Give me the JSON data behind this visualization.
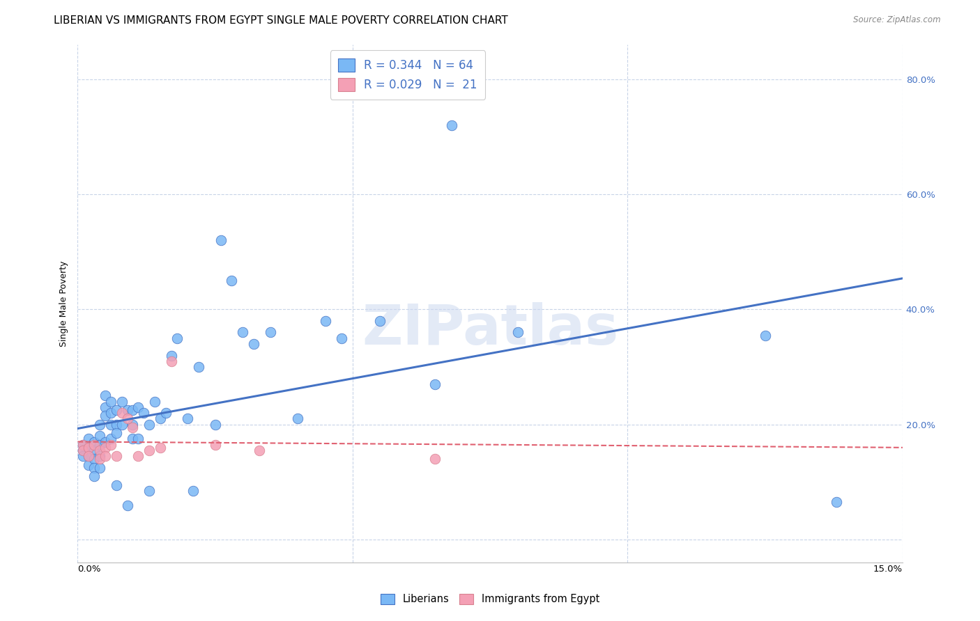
{
  "title": "LIBERIAN VS IMMIGRANTS FROM EGYPT SINGLE MALE POVERTY CORRELATION CHART",
  "source": "Source: ZipAtlas.com",
  "ylabel": "Single Male Poverty",
  "yticks": [
    0.0,
    0.2,
    0.4,
    0.6,
    0.8
  ],
  "ytick_labels": [
    "",
    "20.0%",
    "40.0%",
    "60.0%",
    "80.0%"
  ],
  "xlim": [
    0.0,
    0.15
  ],
  "ylim": [
    -0.04,
    0.86
  ],
  "liberian_color": "#7ab8f5",
  "egypt_color": "#f4a0b5",
  "liberian_line_color": "#4472c4",
  "egypt_line_color": "#e06070",
  "grid_color": "#c8d4e8",
  "background_color": "#ffffff",
  "right_tick_color": "#4472c4",
  "title_fontsize": 11,
  "axis_label_fontsize": 9,
  "tick_fontsize": 9.5,
  "watermark": "ZIPatlas",
  "legend_label1": "R = 0.344   N = 64",
  "legend_label2": "R = 0.029   N =  21",
  "bottom_label1": "Liberians",
  "bottom_label2": "Immigrants from Egypt",
  "liberian_x": [
    0.001,
    0.001,
    0.001,
    0.002,
    0.002,
    0.002,
    0.002,
    0.003,
    0.003,
    0.003,
    0.003,
    0.003,
    0.004,
    0.004,
    0.004,
    0.004,
    0.004,
    0.005,
    0.005,
    0.005,
    0.005,
    0.006,
    0.006,
    0.006,
    0.006,
    0.007,
    0.007,
    0.007,
    0.007,
    0.008,
    0.008,
    0.009,
    0.009,
    0.01,
    0.01,
    0.01,
    0.011,
    0.011,
    0.012,
    0.013,
    0.013,
    0.014,
    0.015,
    0.016,
    0.017,
    0.018,
    0.02,
    0.021,
    0.022,
    0.025,
    0.026,
    0.028,
    0.03,
    0.032,
    0.035,
    0.04,
    0.045,
    0.048,
    0.055,
    0.065,
    0.068,
    0.08,
    0.125,
    0.138
  ],
  "liberian_y": [
    0.165,
    0.155,
    0.145,
    0.175,
    0.16,
    0.145,
    0.13,
    0.17,
    0.155,
    0.14,
    0.125,
    0.11,
    0.2,
    0.18,
    0.165,
    0.145,
    0.125,
    0.25,
    0.23,
    0.215,
    0.17,
    0.24,
    0.22,
    0.2,
    0.175,
    0.225,
    0.2,
    0.185,
    0.095,
    0.24,
    0.2,
    0.225,
    0.06,
    0.2,
    0.225,
    0.175,
    0.23,
    0.175,
    0.22,
    0.085,
    0.2,
    0.24,
    0.21,
    0.22,
    0.32,
    0.35,
    0.21,
    0.085,
    0.3,
    0.2,
    0.52,
    0.45,
    0.36,
    0.34,
    0.36,
    0.21,
    0.38,
    0.35,
    0.38,
    0.27,
    0.72,
    0.36,
    0.355,
    0.065
  ],
  "egypt_x": [
    0.001,
    0.001,
    0.002,
    0.002,
    0.003,
    0.004,
    0.004,
    0.005,
    0.005,
    0.006,
    0.007,
    0.008,
    0.009,
    0.01,
    0.011,
    0.013,
    0.015,
    0.017,
    0.025,
    0.033,
    0.065
  ],
  "egypt_y": [
    0.165,
    0.155,
    0.16,
    0.145,
    0.165,
    0.155,
    0.14,
    0.16,
    0.145,
    0.165,
    0.145,
    0.22,
    0.21,
    0.195,
    0.145,
    0.155,
    0.16,
    0.31,
    0.165,
    0.155,
    0.14
  ]
}
